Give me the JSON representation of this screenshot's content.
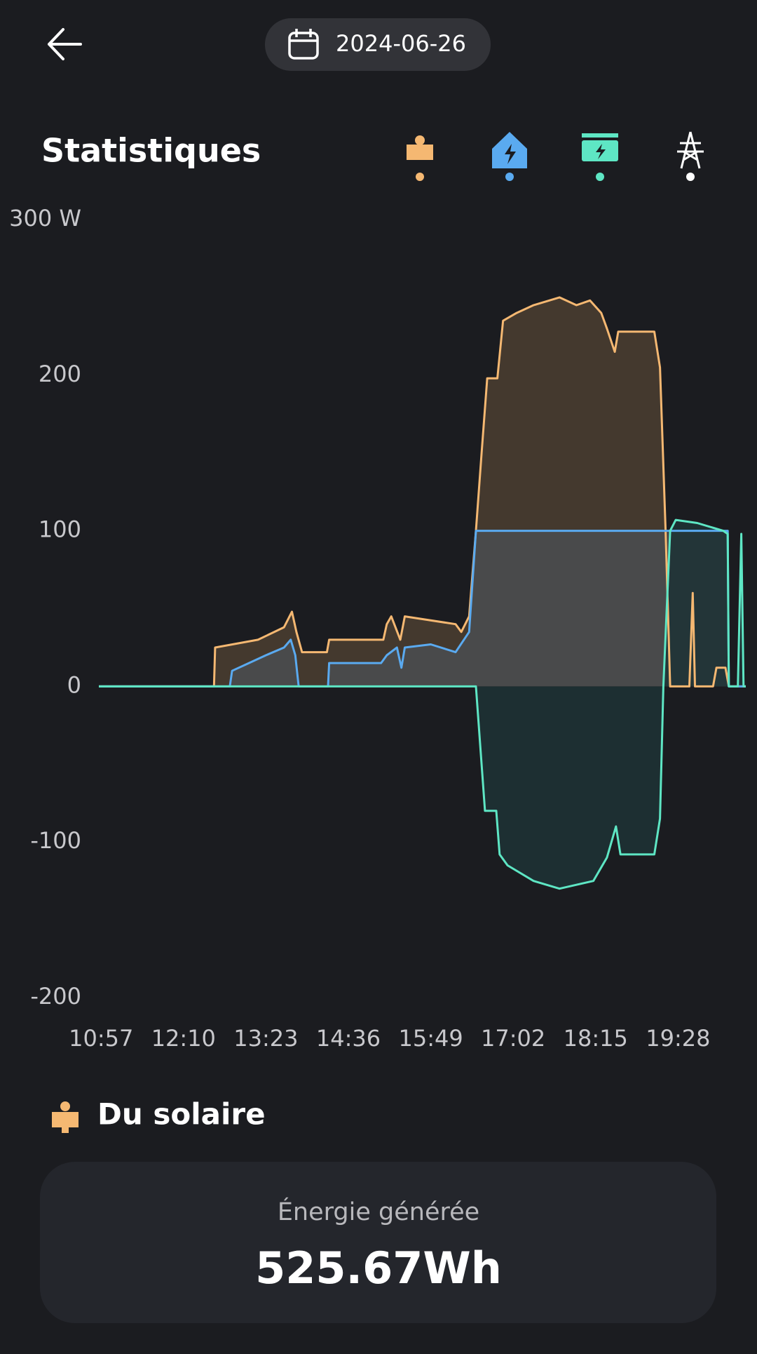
{
  "header": {
    "date": "2024-06-26"
  },
  "title": "Statistiques",
  "chart_data": {
    "type": "line",
    "ylim": [
      -200,
      300
    ],
    "yticks": [
      -200,
      -100,
      0,
      100,
      200,
      {
        "value": 300,
        "label": "300 W"
      }
    ],
    "xlim": [
      "10:55",
      "20:28"
    ],
    "xticks": [
      "10:57",
      "12:10",
      "13:23",
      "14:36",
      "15:49",
      "17:02",
      "18:15",
      "19:28"
    ],
    "series": [
      {
        "color": "#f5b872",
        "fill": "#4b3e31",
        "x": [
          "10:55",
          "12:37",
          "12:38",
          "13:16",
          "13:39",
          "13:46",
          "13:50",
          "13:55",
          "14:17",
          "14:19",
          "15:07",
          "15:10",
          "15:14",
          "15:22",
          "15:26",
          "16:11",
          "16:16",
          "16:23",
          "16:29",
          "16:34",
          "16:39",
          "16:48",
          "16:53",
          "17:05",
          "17:20",
          "17:43",
          "17:58",
          "18:10",
          "18:20",
          "18:25",
          "18:32",
          "18:35",
          "19:07",
          "19:12",
          "19:17",
          "19:21",
          "19:38",
          "19:41",
          "19:43",
          "19:59",
          "20:02",
          "20:10",
          "20:13",
          "20:28"
        ],
        "values": [
          0,
          0,
          25,
          30,
          38,
          48,
          35,
          22,
          22,
          30,
          30,
          40,
          45,
          30,
          45,
          40,
          35,
          45,
          100,
          150,
          198,
          198,
          235,
          240,
          245,
          250,
          245,
          248,
          240,
          230,
          215,
          228,
          228,
          205,
          100,
          0,
          0,
          60,
          0,
          0,
          12,
          12,
          0,
          0
        ]
      },
      {
        "color": "#5aaaf0",
        "fill": "#4a4d50",
        "x": [
          "10:55",
          "12:51",
          "12:53",
          "13:08",
          "13:23",
          "13:39",
          "13:45",
          "13:49",
          "13:52",
          "14:18",
          "14:19",
          "15:05",
          "15:10",
          "15:19",
          "15:23",
          "15:26",
          "15:49",
          "16:11",
          "16:23",
          "16:29",
          "20:12",
          "20:13",
          "20:28"
        ],
        "values": [
          0,
          0,
          10,
          15,
          20,
          25,
          30,
          20,
          0,
          0,
          15,
          15,
          20,
          25,
          12,
          25,
          27,
          22,
          35,
          100,
          100,
          0,
          0
        ]
      },
      {
        "color": "#5ee6c4",
        "fill": "#1d3236",
        "x": [
          "10:55",
          "16:29",
          "16:37",
          "16:47",
          "16:50",
          "16:57",
          "17:20",
          "17:43",
          "18:13",
          "18:25",
          "18:33",
          "18:37",
          "19:07",
          "19:12",
          "19:15",
          "19:21",
          "19:26",
          "19:45",
          "20:08",
          "20:12",
          "20:13",
          "20:21",
          "20:24",
          "20:26",
          "20:28"
        ],
        "values": [
          0,
          0,
          -80,
          -80,
          -108,
          -115,
          -125,
          -130,
          -125,
          -110,
          -90,
          -108,
          -108,
          -85,
          0,
          100,
          107,
          105,
          100,
          98,
          0,
          0,
          98,
          0,
          0
        ]
      }
    ]
  },
  "section": {
    "title": "Du solaire"
  },
  "card": {
    "label": "Énergie générée",
    "value": "525.67Wh"
  }
}
